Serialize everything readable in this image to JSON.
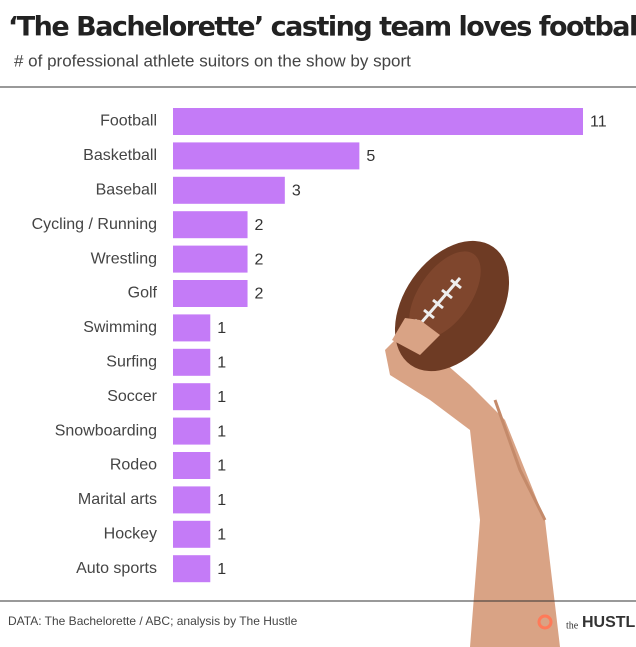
{
  "chart_data": {
    "type": "hbar",
    "title": "‘The Bachelorette’ casting team loves football",
    "subtitle": "# of professional athlete suitors on the show by sport",
    "categories": [
      "Football",
      "Basketball",
      "Baseball",
      "Cycling / Running",
      "Wrestling",
      "Golf",
      "Swimming",
      "Surfing",
      "Soccer",
      "Snowboarding",
      "Rodeo",
      "Marital arts",
      "Hockey",
      "Auto sports"
    ],
    "values": [
      11,
      5,
      3,
      2,
      2,
      2,
      1,
      1,
      1,
      1,
      1,
      1,
      1,
      1
    ],
    "color": "#c47bf7",
    "xlim": [
      0,
      11
    ],
    "source": "DATA: The Bachelorette / ABC; analysis by The Hustle",
    "brand_prefix": "the",
    "brand": "HUSTLE"
  }
}
